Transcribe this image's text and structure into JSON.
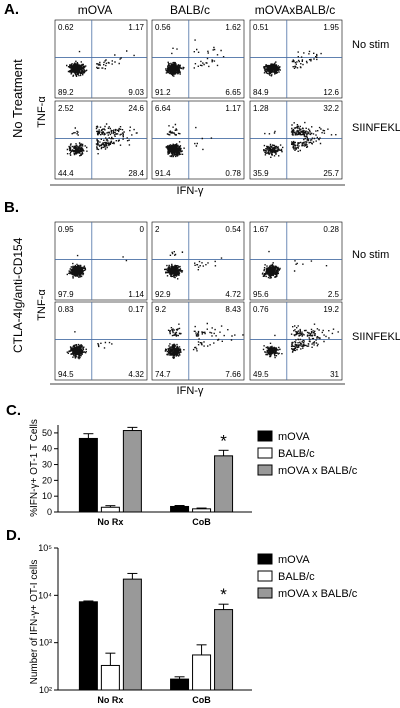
{
  "panel_a": {
    "letter": "A.",
    "columns": [
      "mOVA",
      "BALB/c",
      "mOVAxBALB/c"
    ],
    "side_label": "No Treatment",
    "y_axis": "TNF-α",
    "x_axis": "IFN-γ",
    "row_labels": [
      "No stim",
      "SIINFEKL"
    ],
    "quadrants": [
      [
        [
          "0.62",
          "1.17",
          "89.2",
          "9.03"
        ],
        [
          "0.56",
          "1.62",
          "91.2",
          "6.65"
        ],
        [
          "0.51",
          "1.95",
          "84.9",
          "12.6"
        ]
      ],
      [
        [
          "2.52",
          "24.6",
          "44.4",
          "28.4"
        ],
        [
          "6.64",
          "1.17",
          "91.4",
          "0.78"
        ],
        [
          "1.28",
          "32.2",
          "35.9",
          "25.7"
        ]
      ]
    ]
  },
  "panel_b": {
    "letter": "B.",
    "side_label": "CTLA-4Ig/anti-CD154",
    "y_axis": "TNF-α",
    "x_axis": "IFN-γ",
    "row_labels": [
      "No stim",
      "SIINFEKL"
    ],
    "quadrants": [
      [
        [
          "0.95",
          "0",
          "97.9",
          "1.14"
        ],
        [
          "2",
          "0.54",
          "92.9",
          "4.72"
        ],
        [
          "1.67",
          "0.28",
          "95.6",
          "2.5"
        ]
      ],
      [
        [
          "0.83",
          "0.17",
          "94.5",
          "4.32"
        ],
        [
          "9.2",
          "8.43",
          "74.7",
          "7.66"
        ],
        [
          "0.76",
          "19.2",
          "49.5",
          "31"
        ]
      ]
    ]
  },
  "chart_data": [
    {
      "type": "bar",
      "letter": "C.",
      "ylabel": "%IFN-γ+ OT-1 T Cells",
      "categories": [
        "No Rx",
        "CoB"
      ],
      "ylim": [
        0,
        55
      ],
      "yticks": [
        "0",
        "10",
        "20",
        "30",
        "40",
        "50"
      ],
      "series": [
        {
          "name": "mOVA",
          "color": "#000000",
          "values": [
            46.5,
            3.5
          ],
          "errors": [
            3,
            0.6
          ]
        },
        {
          "name": "BALB/c",
          "color": "#ffffff",
          "values": [
            3,
            2
          ],
          "errors": [
            1,
            0.5
          ]
        },
        {
          "name": "mOVA x BALB/c",
          "color": "#999999",
          "values": [
            51.5,
            35.5
          ],
          "errors": [
            2,
            3.5
          ]
        }
      ],
      "significance": "*"
    },
    {
      "type": "bar",
      "letter": "D.",
      "ylabel": "Number of IFN-γ+ OT-I cells",
      "categories": [
        "No Rx",
        "CoB"
      ],
      "scale": "log",
      "ylim": [
        100,
        100000
      ],
      "yticks": [
        "10²",
        "10³",
        "10⁴",
        "10⁵"
      ],
      "series": [
        {
          "name": "mOVA",
          "color": "#000000",
          "values": [
            7300,
            170
          ],
          "errors": [
            300,
            20
          ]
        },
        {
          "name": "BALB/c",
          "color": "#ffffff",
          "values": [
            330,
            550
          ],
          "errors": [
            270,
            350
          ]
        },
        {
          "name": "mOVA x BALB/c",
          "color": "#999999",
          "values": [
            22000,
            5000
          ],
          "errors": [
            7000,
            1500
          ]
        }
      ],
      "significance": "*"
    }
  ]
}
